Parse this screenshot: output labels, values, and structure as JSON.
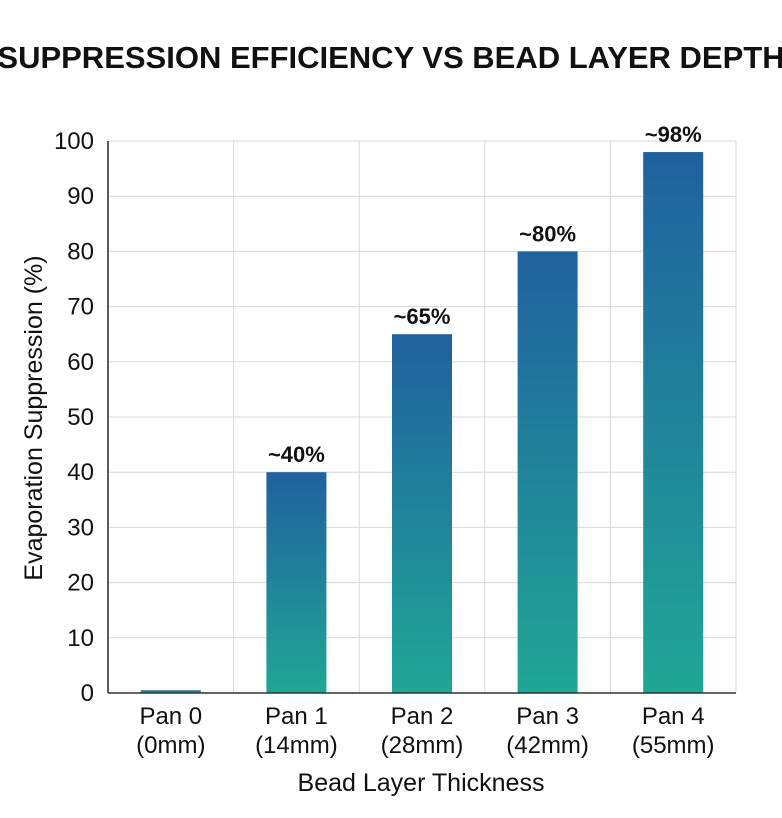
{
  "chart_data": {
    "type": "bar",
    "title": "SUPPRESSION EFFICIENCY VS BEAD LAYER DEPTH",
    "xlabel": "Bead Layer Thickness",
    "ylabel": "Evaporation Suppression (%)",
    "categories": [
      [
        "Pan 0",
        "(0mm)"
      ],
      [
        "Pan 1",
        "(14mm)"
      ],
      [
        "Pan 2",
        "(28mm)"
      ],
      [
        "Pan 3",
        "(42mm)"
      ],
      [
        "Pan 4",
        "(55mm)"
      ]
    ],
    "values": [
      0.5,
      40,
      65,
      80,
      98
    ],
    "data_labels": [
      "",
      "~40%",
      "~65%",
      "~80%",
      "~98%"
    ],
    "ylim": [
      0,
      100
    ],
    "yticks": [
      0,
      10,
      20,
      30,
      40,
      50,
      60,
      70,
      80,
      90,
      100
    ],
    "grid": true,
    "legend": false,
    "colors": {
      "bar_top": "#20619f",
      "bar_bottom": "#20a695",
      "grid": "#d9d9d9",
      "axis": "#333333"
    }
  }
}
